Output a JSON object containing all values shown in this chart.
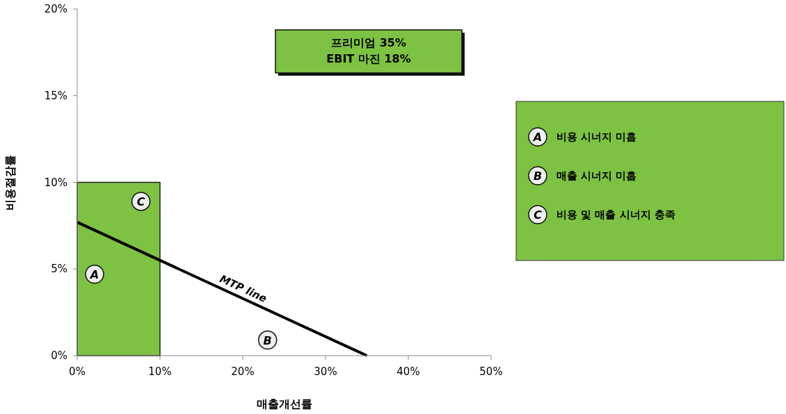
{
  "chart_data": {
    "type": "line",
    "xlabel": "매출개선률",
    "ylabel": "비용절감률",
    "xlim": [
      0,
      50
    ],
    "ylim": [
      0,
      20
    ],
    "xticks": [
      {
        "value": 0,
        "label": "0%"
      },
      {
        "value": 10,
        "label": "10%"
      },
      {
        "value": 20,
        "label": "20%"
      },
      {
        "value": 30,
        "label": "30%"
      },
      {
        "value": 40,
        "label": "40%"
      },
      {
        "value": 50,
        "label": "50%"
      }
    ],
    "yticks": [
      {
        "value": 0,
        "label": "0%"
      },
      {
        "value": 5,
        "label": "5%"
      },
      {
        "value": 10,
        "label": "10%"
      },
      {
        "value": 15,
        "label": "15%"
      },
      {
        "value": 20,
        "label": "20%"
      }
    ],
    "series": [
      {
        "type": "area",
        "color": "#7dc242",
        "x": [
          0,
          10
        ],
        "values": [
          10,
          10
        ]
      },
      {
        "name": "MTP line",
        "color": "#000000",
        "x": [
          0,
          35
        ],
        "values": [
          7.7,
          0
        ]
      }
    ],
    "annotations": [
      {
        "text": "A",
        "x": 2.1,
        "y": 4.7
      },
      {
        "text": "B",
        "x": 23,
        "y": 0.9
      },
      {
        "text": "C",
        "x": 7.7,
        "y": 8.9
      },
      "프리미엄 35%\nEBIT 마진 18%",
      "비용 시너지 미흡",
      "매출 시너지 미흡",
      "비용 및 매출 시너지 충족"
    ]
  }
}
